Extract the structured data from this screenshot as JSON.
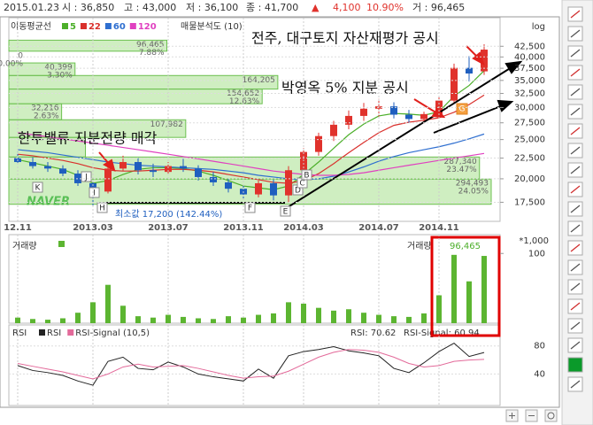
{
  "quote": [
    "2015.01.23",
    "시 : 36,850",
    "고 : 43,000",
    "저 : 36,100",
    "종 : 41,700",
    "▲",
    "4,100",
    "10.90%",
    "거 : 96,465"
  ],
  "chart_data": [
    {
      "type": "candlestick",
      "ma_title": "이동평균선",
      "profile_title": "매물분석도 (10)",
      "scale_label": "log",
      "categories": [
        "12.11",
        null,
        null,
        null,
        null,
        "2013.03",
        null,
        null,
        null,
        null,
        "2013.07",
        null,
        null,
        null,
        null,
        "2013.11",
        null,
        null,
        null,
        "2014.03",
        null,
        null,
        null,
        null,
        "2014.07",
        null,
        null,
        null,
        "2014.11",
        null,
        null,
        null
      ],
      "ohlc": {
        "open": [
          22500,
          22000,
          21500,
          21200,
          20600,
          19500,
          18600,
          21200,
          22000,
          21000,
          20800,
          21500,
          21200,
          20200,
          19600,
          18900,
          18300,
          19500,
          18200,
          21000,
          23300,
          25500,
          27200,
          28600,
          29800,
          30200,
          28800,
          28100,
          28900,
          31200,
          37600,
          36850
        ],
        "high": [
          23300,
          22600,
          22000,
          21600,
          21000,
          19800,
          21500,
          22800,
          22500,
          21800,
          22000,
          22400,
          21600,
          20800,
          20000,
          19300,
          19800,
          19900,
          21500,
          23800,
          26000,
          27800,
          29500,
          30800,
          31500,
          30900,
          29600,
          29300,
          31800,
          38500,
          40200,
          43000
        ],
        "low": [
          21800,
          21200,
          20800,
          20300,
          19200,
          17200,
          18400,
          20900,
          20500,
          20200,
          20500,
          20800,
          19800,
          19200,
          18500,
          17800,
          18000,
          17700,
          17500,
          20600,
          22800,
          24800,
          26500,
          27800,
          28500,
          28200,
          27500,
          27400,
          28500,
          30800,
          34800,
          36100
        ],
        "close": [
          22000,
          21500,
          21200,
          20600,
          19500,
          18600,
          21200,
          22000,
          21000,
          20800,
          21500,
          21200,
          20200,
          19600,
          18900,
          18300,
          19500,
          18200,
          21000,
          23300,
          25500,
          27200,
          28600,
          29800,
          30200,
          28800,
          28100,
          28900,
          31200,
          37600,
          36400,
          41700
        ]
      },
      "up_color": "#e0322c",
      "down_color": "#1f5fbf",
      "series": [
        {
          "name": "5",
          "color": "#4caf2a",
          "values": [
            22300,
            21900,
            21500,
            21100,
            20400,
            19500,
            19800,
            20500,
            21100,
            21300,
            21300,
            21200,
            20900,
            20400,
            19800,
            19200,
            19000,
            18800,
            19200,
            20500,
            22000,
            23800,
            25700,
            27300,
            28600,
            29000,
            28900,
            28700,
            29300,
            32000,
            34000,
            37000
          ]
        },
        {
          "name": "22",
          "color": "#d9302c",
          "values": [
            23000,
            22800,
            22500,
            22200,
            21800,
            21300,
            21000,
            20900,
            20900,
            21000,
            21100,
            21100,
            21000,
            20800,
            20500,
            20200,
            19900,
            19600,
            19500,
            19800,
            20600,
            21800,
            23200,
            24600,
            26000,
            27100,
            27600,
            27900,
            28300,
            29200,
            30500,
            32200
          ]
        },
        {
          "name": "60",
          "color": "#2f6fd0",
          "values": [
            23600,
            23400,
            23200,
            22900,
            22600,
            22300,
            22000,
            21800,
            21600,
            21500,
            21400,
            21300,
            21200,
            21100,
            20900,
            20700,
            20400,
            20200,
            20000,
            19900,
            20000,
            20300,
            20800,
            21400,
            22100,
            22700,
            23200,
            23600,
            24000,
            24500,
            25100,
            25800
          ]
        },
        {
          "name": "120",
          "color": "#e040c0",
          "values": [
            26000,
            25700,
            25400,
            25100,
            24800,
            24500,
            24200,
            23900,
            23600,
            23300,
            23000,
            22700,
            22400,
            22100,
            21800,
            21500,
            21200,
            20900,
            20700,
            20500,
            20400,
            20400,
            20500,
            20700,
            21000,
            21300,
            21600,
            21900,
            22200,
            22500,
            22800,
            23100
          ]
        }
      ],
      "log": true,
      "grid": true,
      "ylim": [
        15700,
        50000
      ],
      "yticks": [
        {
          "value": 17500,
          "label": "17,500"
        },
        {
          "value": 20000,
          "label": "20,000"
        },
        {
          "value": 22500,
          "label": "22,500"
        },
        {
          "value": 25000,
          "label": "25,000"
        },
        {
          "value": 27500,
          "label": "27,500"
        },
        {
          "value": 30000,
          "label": "30,000"
        },
        {
          "value": 32500,
          "label": "32,500"
        },
        {
          "value": 35000,
          "label": "35,000"
        },
        {
          "value": 37500,
          "label": "37,500"
        },
        {
          "value": 40000,
          "label": "40,000"
        },
        {
          "value": 42500,
          "label": "42,500"
        }
      ],
      "profile": {
        "bins": [
          17300,
          19970,
          22640,
          25310,
          27980,
          30650,
          33320,
          35990,
          38660,
          41330,
          44000
        ],
        "values": [
          294493,
          287340,
          46751,
          107982,
          32216,
          154652,
          164205,
          40399,
          0,
          96465
        ],
        "value_labels": [
          "294,493",
          "287,340",
          null,
          "107,982",
          "32,216",
          "154,652",
          "164,205",
          "40,399",
          "0",
          "96,465"
        ],
        "pct_labels": [
          "24.05%",
          "23.47%",
          null,
          null,
          "2.63%",
          "12.63%",
          null,
          "3.30%",
          "0.00%",
          "7.88%"
        ],
        "color": "#a8e08e"
      },
      "annotations": [
        "전주, 대구토지 자산재평가 공시",
        "박영옥 5% 지분 공시",
        "한투밸류 지분전량 매각"
      ],
      "min_label": "최소값 17,200 (142.44%)",
      "point_labels": [
        "K",
        "J",
        "I",
        "H",
        "F",
        "E",
        "D",
        "C",
        "B",
        "G"
      ],
      "watermark": "NAVER"
    },
    {
      "type": "bar",
      "title": "거래량",
      "readout_label": "거래량",
      "readout_value": "96,465",
      "unit_label": "*1,000",
      "color": "#5cb531",
      "values": [
        8,
        6,
        5,
        7,
        15,
        30,
        55,
        25,
        10,
        8,
        12,
        9,
        7,
        6,
        10,
        8,
        12,
        14,
        30,
        28,
        22,
        18,
        20,
        15,
        12,
        10,
        9,
        14,
        40,
        98,
        60,
        96.465
      ],
      "ylim": [
        0,
        127
      ],
      "yticks": [
        100
      ]
    },
    {
      "type": "line",
      "title": "RSI",
      "series": [
        {
          "name": "RSI",
          "color": "#222222",
          "values": [
            52,
            45,
            42,
            38,
            30,
            24,
            58,
            64,
            48,
            46,
            57,
            50,
            40,
            36,
            33,
            30,
            47,
            34,
            66,
            72,
            75,
            79,
            73,
            70,
            66,
            48,
            42,
            56,
            72,
            84,
            65,
            70.62
          ]
        },
        {
          "name": "RSI-Signal (10,5)",
          "color": "#e36a9a",
          "values": [
            55,
            51,
            47,
            43,
            38,
            33,
            40,
            50,
            54,
            50,
            51,
            52,
            48,
            43,
            38,
            34,
            36,
            37,
            44,
            54,
            64,
            71,
            75,
            74,
            71,
            64,
            55,
            50,
            52,
            58,
            60,
            60.94
          ]
        }
      ],
      "readouts": [
        "RSI: 70.62",
        "RSI-Signal: 60.94"
      ],
      "ylim": [
        -5,
        110
      ],
      "yticks": [
        80,
        40
      ]
    }
  ]
}
